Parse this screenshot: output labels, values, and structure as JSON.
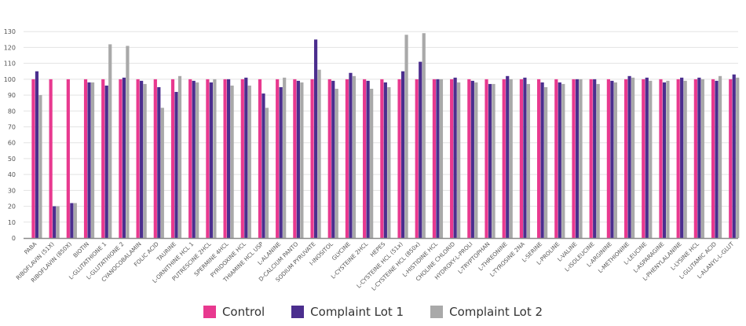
{
  "chart_data": {
    "type": "bar",
    "title": "",
    "xlabel": "",
    "ylabel": "",
    "ylim": [
      0,
      140
    ],
    "yticks": [
      0,
      10,
      20,
      30,
      40,
      50,
      60,
      70,
      80,
      90,
      100,
      110,
      120,
      130
    ],
    "grid": true,
    "legend_position": "bottom",
    "categories": [
      "PABA",
      "RIBOFLAVIN (51X)",
      "RIBOFLAVIN (850X)",
      "BIOTIN",
      "L-GLUTATHIONE 1",
      "L-GLUTATHIONE 2",
      "CYANOCOBALAMIN",
      "FOLIC ACID",
      "TAURINE",
      "L-ORNITHINE HCL 1",
      "PUTRESCINE 2HCL",
      "SPERMINE 4HCL",
      "PYRIDOXINE HCL",
      "THIAMINE HCL USP",
      "L-ALANINE",
      "D-CALCIUM PANTO",
      "SODIUM PYRUVATE",
      "I-INOSITOL",
      "GLYCINE",
      "L-CYSTEINE 2HCL",
      "HEPES",
      "L-CYSTEINE HCL (51x)",
      "L-CYSTEINE HCL (850x)",
      "L-HISTIDINE HCL",
      "CHOLINE CHLORID",
      "HYDROXY-L-PROLI",
      "L-TRYPTOPHAN",
      "L-THREONINE",
      "L-TYROSINE 2NA",
      "L-SERINE",
      "L-PROLINE",
      "L-VALINE",
      "L-ISOLEUCINE",
      "L-ARGININE",
      "L-METHIONINE",
      "L-LEUCINE",
      "L-ASPARAGINE",
      "L-PHENYLALANINE",
      "L-LYSINE HCL",
      "L-GLUTAMIC ACID",
      "L-ALANYL-L-GLUT"
    ],
    "series": [
      {
        "name": "Control",
        "color": "#e8398f",
        "values": [
          100,
          100,
          100,
          100,
          100,
          100,
          100,
          100,
          100,
          100,
          100,
          100,
          100,
          100,
          100,
          100,
          100,
          100,
          100,
          100,
          100,
          100,
          100,
          100,
          100,
          100,
          100,
          100,
          100,
          100,
          100,
          100,
          100,
          100,
          100,
          100,
          100,
          100,
          100,
          100,
          100
        ]
      },
      {
        "name": "Complaint Lot 1",
        "color": "#4b2e8e",
        "values": [
          105,
          20,
          22,
          98,
          96,
          101,
          99,
          95,
          92,
          99,
          98,
          100,
          101,
          91,
          95,
          99,
          125,
          99,
          104,
          99,
          98,
          105,
          111,
          100,
          101,
          99,
          97,
          102,
          101,
          98,
          98,
          100,
          100,
          99,
          102,
          101,
          98,
          101,
          101,
          99,
          103
        ]
      },
      {
        "name": "Complaint Lot 2",
        "color": "#a9a9a9",
        "values": [
          90,
          20,
          22,
          98,
          122,
          121,
          97,
          82,
          102,
          98,
          100,
          96,
          96,
          82,
          101,
          98,
          106,
          94,
          102,
          94,
          95,
          128,
          129,
          100,
          98,
          98,
          97,
          100,
          97,
          95,
          97,
          100,
          97,
          98,
          101,
          99,
          99,
          99,
          100,
          102,
          101
        ]
      }
    ]
  }
}
